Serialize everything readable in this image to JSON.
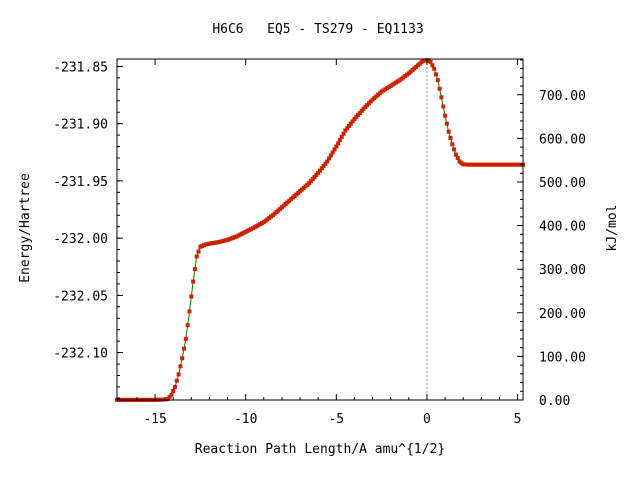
{
  "chart_data": {
    "type": "line",
    "title": "H6C6   EQ5 - TS279 - EQ1133",
    "xlabel": "Reaction Path Length/A amu^{1/2}",
    "ylabel": "Energy/Hartree",
    "y2label": "kJ/mol",
    "xlim": [
      -17.1,
      5.3
    ],
    "ylim": [
      -232.1414,
      -231.8435
    ],
    "y2lim": [
      0,
      782
    ],
    "x_ticks": [
      {
        "value": -15,
        "label": "-15"
      },
      {
        "value": -10,
        "label": "-10"
      },
      {
        "value": -5,
        "label": "-5"
      },
      {
        "value": 0,
        "label": "0"
      },
      {
        "value": 5,
        "label": "5"
      }
    ],
    "y_ticks": [
      {
        "value": -231.85,
        "label": "-231.85"
      },
      {
        "value": -231.9,
        "label": "-231.90"
      },
      {
        "value": -231.95,
        "label": "-231.95"
      },
      {
        "value": -232.0,
        "label": "-232.00"
      },
      {
        "value": -232.05,
        "label": "-232.05"
      },
      {
        "value": -232.1,
        "label": "-232.10"
      }
    ],
    "y2_ticks": [
      {
        "value": 0,
        "label": "0.00"
      },
      {
        "value": 100,
        "label": "100.00"
      },
      {
        "value": 200,
        "label": "200.00"
      },
      {
        "value": 300,
        "label": "300.00"
      },
      {
        "value": 400,
        "label": "400.00"
      },
      {
        "value": 500,
        "label": "500.00"
      },
      {
        "value": 600,
        "label": "600.00"
      },
      {
        "value": 700,
        "label": "700.00"
      }
    ],
    "ts_marker_x": 0,
    "line_color": "#008000",
    "marker_color": "#cc2200",
    "series": [
      {
        "points": [
          [
            -17.1,
            -232.1413
          ],
          [
            -15.0,
            -232.1413
          ],
          [
            -14.5,
            -232.141
          ],
          [
            -14.3,
            -232.1405
          ],
          [
            -14.1,
            -232.137
          ],
          [
            -13.9,
            -232.13
          ],
          [
            -13.7,
            -232.119
          ],
          [
            -13.5,
            -232.105
          ],
          [
            -13.3,
            -232.088
          ],
          [
            -13.1,
            -232.064
          ],
          [
            -12.9,
            -232.038
          ],
          [
            -12.7,
            -232.016
          ],
          [
            -12.5,
            -232.0075
          ],
          [
            -12.2,
            -232.0055
          ],
          [
            -12.0,
            -232.0048
          ],
          [
            -11.5,
            -232.0035
          ],
          [
            -11.0,
            -232.0015
          ],
          [
            -10.5,
            -231.9985
          ],
          [
            -10.0,
            -231.9945
          ],
          [
            -9.5,
            -231.9905
          ],
          [
            -9.0,
            -231.986
          ],
          [
            -8.5,
            -231.98
          ],
          [
            -8.0,
            -231.973
          ],
          [
            -7.5,
            -231.966
          ],
          [
            -7.0,
            -231.959
          ],
          [
            -6.5,
            -231.952
          ],
          [
            -6.0,
            -231.943
          ],
          [
            -5.5,
            -231.933
          ],
          [
            -5.0,
            -231.92
          ],
          [
            -4.5,
            -231.906
          ],
          [
            -4.0,
            -231.896
          ],
          [
            -3.5,
            -231.887
          ],
          [
            -3.0,
            -231.879
          ],
          [
            -2.5,
            -231.872
          ],
          [
            -2.0,
            -231.867
          ],
          [
            -1.5,
            -231.862
          ],
          [
            -1.0,
            -231.856
          ],
          [
            -0.5,
            -231.849
          ],
          [
            -0.2,
            -231.845
          ],
          [
            0.0,
            -231.8445
          ],
          [
            0.2,
            -231.846
          ],
          [
            0.4,
            -231.852
          ],
          [
            0.6,
            -231.862
          ],
          [
            0.8,
            -231.877
          ],
          [
            1.0,
            -231.893
          ],
          [
            1.2,
            -231.907
          ],
          [
            1.4,
            -231.918
          ],
          [
            1.6,
            -231.927
          ],
          [
            1.8,
            -231.933
          ],
          [
            2.0,
            -231.9355
          ],
          [
            2.3,
            -231.9358
          ],
          [
            3.0,
            -231.9358
          ],
          [
            4.0,
            -231.9358
          ],
          [
            5.3,
            -231.9358
          ]
        ]
      }
    ]
  }
}
